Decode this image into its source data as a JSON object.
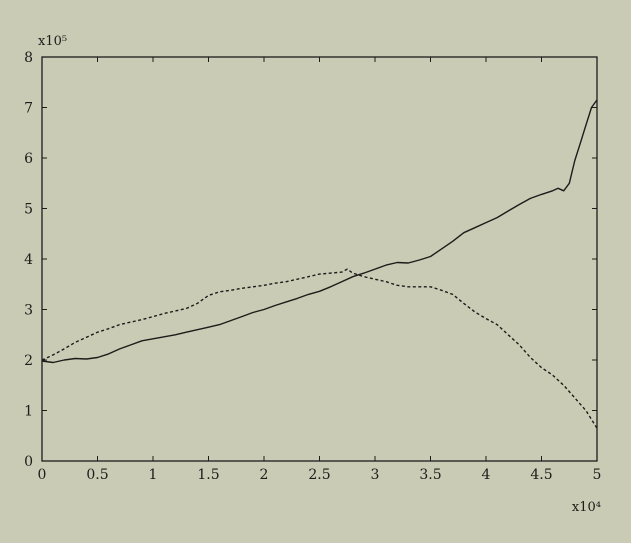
{
  "chart_data": {
    "type": "line",
    "title": "",
    "xlabel": "",
    "ylabel": "",
    "x_exponent_label": "x10⁴",
    "y_exponent_label": "x10⁵",
    "xlim": [
      0,
      5
    ],
    "ylim": [
      0,
      8
    ],
    "x_ticks": [
      "0",
      "0.5",
      "1",
      "1.5",
      "2",
      "2.5",
      "3",
      "3.5",
      "4",
      "4.5",
      "5"
    ],
    "y_ticks": [
      "0",
      "1",
      "2",
      "3",
      "4",
      "5",
      "6",
      "7",
      "8"
    ],
    "grid": false,
    "legend": "none",
    "series": [
      {
        "style": "solid",
        "x": [
          0,
          0.1,
          0.2,
          0.3,
          0.4,
          0.5,
          0.6,
          0.7,
          0.8,
          0.9,
          1.0,
          1.1,
          1.2,
          1.3,
          1.4,
          1.5,
          1.6,
          1.7,
          1.8,
          1.9,
          2.0,
          2.1,
          2.2,
          2.3,
          2.4,
          2.5,
          2.6,
          2.7,
          2.8,
          2.9,
          3.0,
          3.1,
          3.2,
          3.3,
          3.4,
          3.5,
          3.6,
          3.7,
          3.8,
          3.9,
          4.0,
          4.1,
          4.2,
          4.3,
          4.4,
          4.5,
          4.6,
          4.65,
          4.7,
          4.75,
          4.8,
          4.85,
          4.9,
          4.95,
          5.0
        ],
        "y": [
          1.98,
          1.95,
          2.0,
          2.03,
          2.02,
          2.05,
          2.12,
          2.22,
          2.3,
          2.38,
          2.42,
          2.46,
          2.5,
          2.55,
          2.6,
          2.65,
          2.7,
          2.78,
          2.86,
          2.94,
          3.0,
          3.08,
          3.15,
          3.22,
          3.3,
          3.36,
          3.45,
          3.55,
          3.65,
          3.72,
          3.8,
          3.88,
          3.93,
          3.92,
          3.98,
          4.05,
          4.2,
          4.35,
          4.52,
          4.62,
          4.72,
          4.82,
          4.95,
          5.08,
          5.2,
          5.28,
          5.35,
          5.4,
          5.35,
          5.5,
          5.95,
          6.3,
          6.65,
          7.0,
          7.15
        ]
      },
      {
        "style": "dashed",
        "x": [
          0,
          0.1,
          0.2,
          0.3,
          0.4,
          0.5,
          0.6,
          0.7,
          0.8,
          0.9,
          1.0,
          1.1,
          1.2,
          1.3,
          1.4,
          1.5,
          1.6,
          1.7,
          1.8,
          1.9,
          2.0,
          2.1,
          2.2,
          2.3,
          2.4,
          2.5,
          2.6,
          2.7,
          2.75,
          2.8,
          2.9,
          3.0,
          3.1,
          3.2,
          3.3,
          3.4,
          3.5,
          3.6,
          3.7,
          3.8,
          3.9,
          4.0,
          4.1,
          4.2,
          4.3,
          4.4,
          4.5,
          4.6,
          4.7,
          4.8,
          4.9,
          5.0
        ],
        "y": [
          2.0,
          2.1,
          2.22,
          2.35,
          2.45,
          2.55,
          2.62,
          2.7,
          2.75,
          2.8,
          2.86,
          2.92,
          2.97,
          3.02,
          3.12,
          3.28,
          3.35,
          3.38,
          3.42,
          3.45,
          3.48,
          3.52,
          3.55,
          3.6,
          3.65,
          3.7,
          3.72,
          3.74,
          3.8,
          3.72,
          3.65,
          3.6,
          3.55,
          3.48,
          3.45,
          3.45,
          3.45,
          3.38,
          3.3,
          3.12,
          2.95,
          2.82,
          2.7,
          2.5,
          2.3,
          2.05,
          1.85,
          1.7,
          1.5,
          1.25,
          1.0,
          0.65
        ]
      }
    ]
  }
}
